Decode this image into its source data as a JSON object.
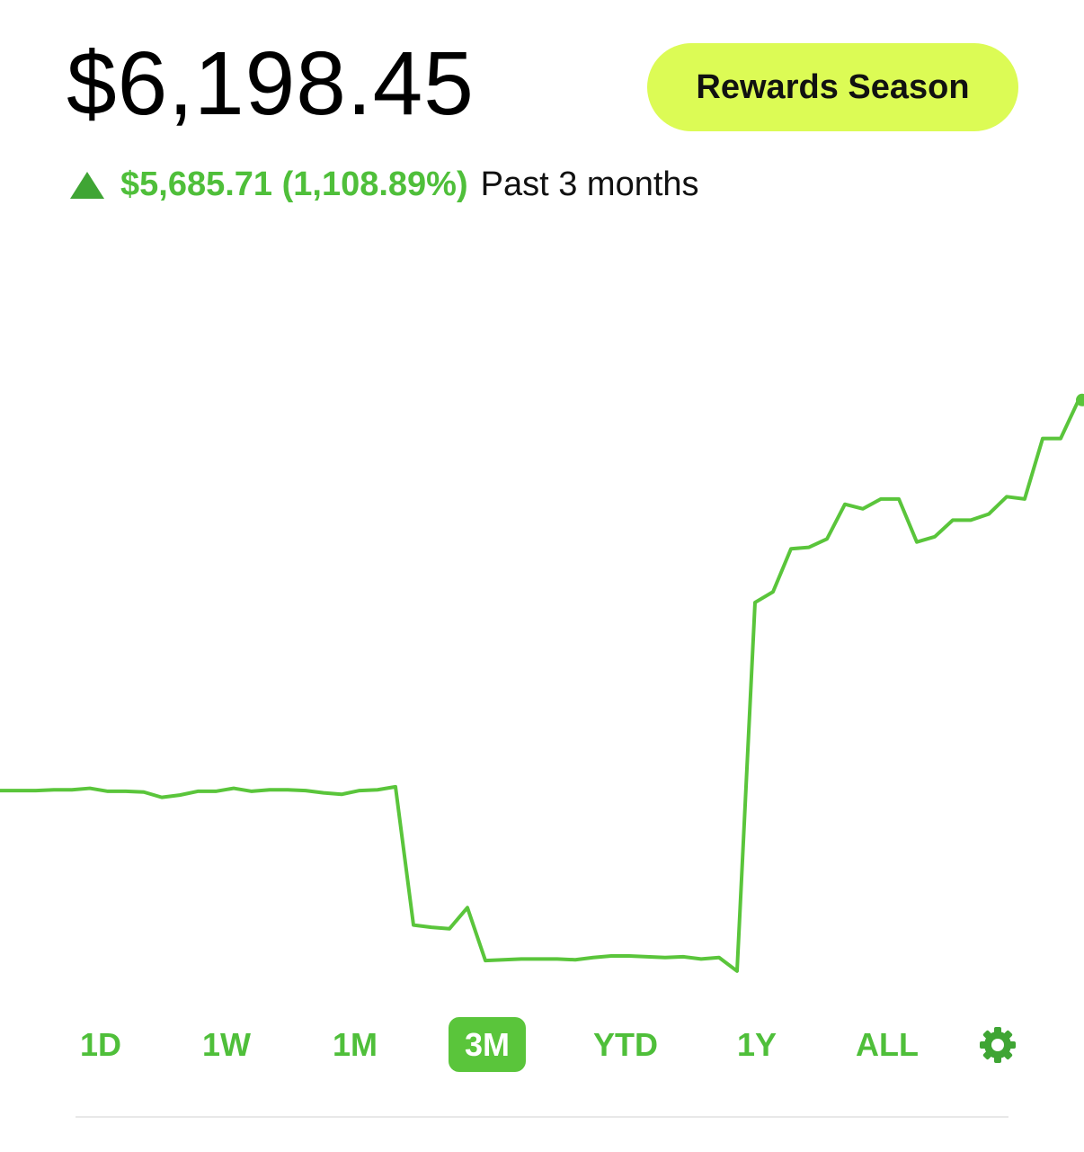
{
  "header": {
    "balance": "$6,198.45",
    "rewards_button": "Rewards Season",
    "change": "$5,685.71 (1,108.89%)",
    "period": "Past 3 months"
  },
  "chart_data": {
    "type": "line",
    "color": "#5ac53b",
    "ylim": [
      0,
      100
    ],
    "values": [
      26.3,
      26.3,
      26.3,
      26.4,
      26.4,
      26.6,
      26.2,
      26.2,
      26.1,
      25.4,
      25.7,
      26.2,
      26.2,
      26.6,
      26.2,
      26.4,
      26.4,
      26.3,
      26.0,
      25.8,
      26.3,
      26.4,
      26.8,
      8.5,
      8.2,
      8.0,
      10.8,
      3.8,
      3.9,
      4.0,
      4.0,
      4.0,
      3.9,
      4.2,
      4.4,
      4.4,
      4.3,
      4.2,
      4.3,
      4.0,
      4.2,
      2.4,
      51.2,
      52.6,
      58.3,
      58.5,
      59.6,
      64.2,
      63.6,
      64.9,
      64.9,
      59.2,
      59.9,
      62.1,
      62.1,
      62.9,
      65.2,
      64.9,
      72.9,
      72.9,
      78.0
    ]
  },
  "range_selector": {
    "options": [
      "1D",
      "1W",
      "1M",
      "3M",
      "YTD",
      "1Y",
      "ALL"
    ],
    "selected": 3
  }
}
